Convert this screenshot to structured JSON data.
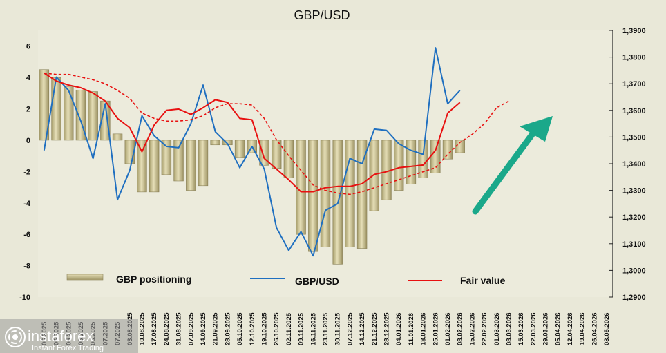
{
  "chart_data": {
    "type": "bar+line",
    "title": "GBP/USD",
    "x_labels": [
      "06.2025",
      "06.2025",
      "06.2025",
      "06.2025",
      "06.2025",
      "07.2025",
      "07.2025",
      "03.08.2025",
      "10.08.2025",
      "17.08.2025",
      "24.08.2025",
      "31.08.2025",
      "07.09.2025",
      "14.09.2025",
      "21.09.2025",
      "28.09.2025",
      "05.10.2025",
      "12.10.2025",
      "19.10.2025",
      "26.10.2025",
      "02.11.2025",
      "09.11.2025",
      "16.11.2025",
      "23.11.2025",
      "30.11.2025",
      "07.12.2025",
      "14.12.2025",
      "21.12.2025",
      "28.12.2025",
      "04.01.2026",
      "11.01.2026",
      "18.01.2026",
      "25.01.2026",
      "01.02.2026",
      "08.02.2026",
      "15.02.2026",
      "22.02.2026",
      "01.03.2026",
      "08.03.2026",
      "15.03.2026",
      "22.03.2026",
      "29.03.2026",
      "05.04.2026",
      "12.04.2026",
      "19.04.2026",
      "26.04.2026",
      "03.05.2026"
    ],
    "left_axis": {
      "min": -10,
      "max": 7,
      "ticks": [
        6,
        4,
        2,
        0,
        -2,
        -4,
        -6,
        -8,
        -10
      ]
    },
    "right_axis": {
      "min": 1.29,
      "max": 1.39,
      "ticks": [
        "1,3900",
        "1,3800",
        "1,3700",
        "1,3600",
        "1,3500",
        "1,3400",
        "1,3300",
        "1,3200",
        "1,3100",
        "1,3000",
        "1,2900"
      ]
    },
    "series": [
      {
        "name": "GBP positioning",
        "type": "bar",
        "axis": "left",
        "color": "#c9c192",
        "values": [
          4.5,
          4.0,
          3.4,
          3.2,
          3.1,
          2.5,
          0.4,
          -1.5,
          -3.3,
          -3.3,
          -2.2,
          -2.6,
          -3.2,
          -2.9,
          -0.3,
          -0.3,
          -1.1,
          -0.8,
          -1.6,
          -1.8,
          -2.4,
          -6.0,
          -7.1,
          -6.8,
          -7.9,
          -6.8,
          -6.9,
          -4.5,
          -3.8,
          -3.2,
          -2.8,
          -2.4,
          -2.1,
          -1.2,
          -0.8
        ]
      },
      {
        "name": "GBP/USD",
        "type": "line",
        "axis": "right",
        "color": "#1f6fc0",
        "values": [
          1.345,
          1.3725,
          1.3675,
          1.356,
          1.342,
          1.3625,
          1.3265,
          1.3375,
          1.358,
          1.3505,
          1.3465,
          1.346,
          1.355,
          1.3695,
          1.352,
          1.3475,
          1.3385,
          1.3465,
          1.338,
          1.316,
          1.3075,
          1.3145,
          1.3055,
          1.3225,
          1.325,
          1.342,
          1.34,
          1.353,
          1.3525,
          1.3475,
          1.345,
          1.3435,
          1.3835,
          1.3625,
          1.3675
        ]
      },
      {
        "name": "Fair value",
        "type": "line",
        "axis": "right",
        "color": "#e81010",
        "values": [
          1.374,
          1.371,
          1.3695,
          1.3685,
          1.3665,
          1.3635,
          1.357,
          1.3535,
          1.3445,
          1.3545,
          1.36,
          1.3605,
          1.3585,
          1.361,
          1.364,
          1.363,
          1.357,
          1.3565,
          1.342,
          1.338,
          1.334,
          1.3295,
          1.3295,
          1.331,
          1.3315,
          1.3315,
          1.3325,
          1.336,
          1.337,
          1.3385,
          1.339,
          1.3395,
          1.345,
          1.359,
          1.363
        ]
      },
      {
        "name": "",
        "type": "line",
        "axis": "right",
        "color": "#e81010",
        "dash": true,
        "values": [
          1.374,
          1.3735,
          1.3735,
          1.3725,
          1.3715,
          1.37,
          1.3675,
          1.3645,
          1.359,
          1.357,
          1.356,
          1.356,
          1.3565,
          1.358,
          1.361,
          1.3625,
          1.3625,
          1.362,
          1.357,
          1.349,
          1.343,
          1.3375,
          1.332,
          1.33,
          1.329,
          1.3285,
          1.3295,
          1.331,
          1.3325,
          1.334,
          1.3355,
          1.337,
          1.3385,
          1.3435,
          1.348,
          1.351,
          1.355,
          1.361,
          1.3635
        ]
      }
    ],
    "legend": {
      "placement": "bottom",
      "items": [
        "GBP positioning",
        "GBP/USD",
        "Fair value"
      ]
    },
    "annotation": {
      "type": "arrow",
      "direction": "up-right",
      "color": "#1aa88a"
    },
    "grid": false
  },
  "watermark": {
    "brand": "instaforex",
    "tagline": "Instant Forex Trading",
    "icon": "instaforex-logo-icon"
  }
}
